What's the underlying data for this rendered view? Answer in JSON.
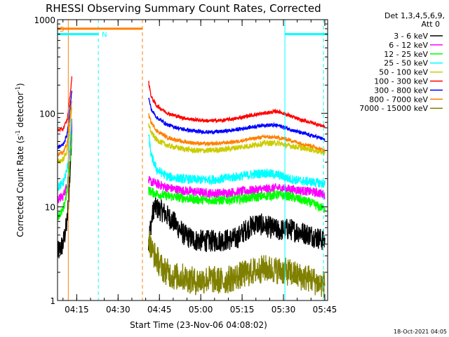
{
  "chart_data": {
    "type": "line",
    "title": "RHESSI Observing Summary Count Rates, Corrected",
    "xlabel": "Start Time (23-Nov-06 04:08:02)",
    "ylabel_main": "Corrected Count Rate (s",
    "ylabel_sup1": "-1",
    "ylabel_mid": " detector",
    "ylabel_sup2": "-1",
    "ylabel_end": ")",
    "x_unit": "minutes after 04:08:02",
    "xlim": [
      0,
      98
    ],
    "ylim": [
      1,
      1000
    ],
    "yscale": "log",
    "x_ticks": [
      {
        "label": "04:15",
        "x": 6.97
      },
      {
        "label": "04:30",
        "x": 21.97
      },
      {
        "label": "04:45",
        "x": 36.97
      },
      {
        "label": "05:00",
        "x": 51.97
      },
      {
        "label": "05:15",
        "x": 66.97
      },
      {
        "label": "05:30",
        "x": 81.97
      },
      {
        "label": "05:45",
        "x": 96.97
      }
    ],
    "y_ticks": [
      {
        "label": "1",
        "y": 1
      },
      {
        "label": "10",
        "y": 10
      },
      {
        "label": "100",
        "y": 100
      },
      {
        "label": "1000",
        "y": 1000
      }
    ],
    "legend_header": [
      "Det 1,3,4,5,6,9,",
      "Att 0"
    ],
    "legend_position": "right",
    "series": [
      {
        "name": "3 - 6 keV",
        "color": "#000000",
        "x": [
          0,
          2,
          3.5,
          4.5,
          5.2,
          33,
          35,
          38,
          42,
          46,
          50,
          55,
          60,
          65,
          68,
          72,
          76,
          80,
          84,
          88,
          92,
          95,
          97
        ],
        "y": [
          3.2,
          4,
          7,
          22,
          70,
          4.5,
          10,
          9,
          7,
          5,
          4.4,
          4.3,
          4.4,
          4.6,
          5.6,
          6.7,
          6.2,
          5.6,
          5.8,
          5.4,
          5,
          4.6,
          4.3
        ]
      },
      {
        "name": "6 - 12 keV",
        "color": "#ff00ff",
        "x": [
          0,
          2,
          3.5,
          4.5,
          5.2,
          33,
          35,
          40,
          45,
          50,
          55,
          60,
          65,
          70,
          75,
          80,
          84,
          88,
          92,
          95,
          97
        ],
        "y": [
          12,
          13,
          17,
          35,
          80,
          19,
          18,
          16,
          15,
          14.5,
          14,
          14,
          14.5,
          15,
          15.5,
          16,
          15.5,
          15,
          14.5,
          14,
          13.5
        ]
      },
      {
        "name": "12 - 25 keV",
        "color": "#00ff00",
        "x": [
          0,
          2,
          3.5,
          4.5,
          5.2,
          33,
          35,
          40,
          45,
          50,
          55,
          60,
          65,
          70,
          75,
          80,
          84,
          88,
          92,
          95,
          97
        ],
        "y": [
          8,
          9,
          15,
          30,
          60,
          15,
          14,
          13,
          12.5,
          12,
          11.8,
          11.8,
          12,
          12.5,
          13,
          13.5,
          13,
          12,
          11,
          10,
          9.5
        ]
      },
      {
        "name": "25 - 50 keV",
        "color": "#00ffff",
        "x": [
          0,
          2,
          3.5,
          4.5,
          5.2,
          33,
          34,
          36,
          40,
          45,
          50,
          55,
          60,
          65,
          70,
          75,
          80,
          84,
          88,
          92,
          95,
          97
        ],
        "y": [
          16,
          18,
          25,
          50,
          90,
          60,
          35,
          25,
          21,
          20,
          19.5,
          19.5,
          20,
          21,
          22,
          23,
          22,
          20,
          19,
          18.5,
          18,
          17.5
        ]
      },
      {
        "name": "50 - 100 keV",
        "color": "#cccc00",
        "x": [
          0,
          2,
          3.5,
          4.5,
          5.2,
          33,
          34,
          36,
          40,
          45,
          50,
          55,
          60,
          65,
          70,
          75,
          80,
          84,
          88,
          92,
          95,
          97
        ],
        "y": [
          30,
          32,
          40,
          70,
          110,
          78,
          62,
          52,
          45,
          42,
          40,
          40,
          41,
          43,
          45,
          48,
          48,
          45,
          43,
          41,
          39,
          38
        ]
      },
      {
        "name": "100 - 300 keV",
        "color": "#ff0000",
        "x": [
          0,
          2,
          3.5,
          4.5,
          5.2,
          33,
          34,
          36,
          40,
          45,
          50,
          55,
          60,
          65,
          70,
          75,
          80,
          84,
          88,
          92,
          95,
          97
        ],
        "y": [
          66,
          68,
          85,
          150,
          240,
          220,
          150,
          120,
          100,
          90,
          85,
          83,
          84,
          88,
          95,
          100,
          105,
          95,
          85,
          80,
          75,
          72
        ]
      },
      {
        "name": "300 - 800 keV",
        "color": "#0000ff",
        "x": [
          0,
          2,
          3.5,
          4.5,
          5.2,
          33,
          34,
          36,
          40,
          45,
          50,
          55,
          60,
          65,
          70,
          75,
          80,
          84,
          88,
          92,
          95,
          97
        ],
        "y": [
          43,
          46,
          60,
          110,
          180,
          150,
          110,
          90,
          75,
          68,
          64,
          63,
          64,
          67,
          71,
          75,
          74,
          68,
          62,
          58,
          55,
          52
        ]
      },
      {
        "name": "800 - 7000 keV",
        "color": "#ff8000",
        "x": [
          0,
          2,
          3.5,
          4.5,
          5.2,
          33,
          34,
          36,
          40,
          45,
          50,
          55,
          60,
          65,
          70,
          75,
          80,
          84,
          88,
          92,
          95,
          97
        ],
        "y": [
          36,
          38,
          48,
          85,
          140,
          96,
          80,
          65,
          55,
          50,
          48,
          47,
          48,
          50,
          53,
          56,
          55,
          52,
          48,
          45,
          42,
          40
        ]
      },
      {
        "name": "7000 - 15000 keV",
        "color": "#808000",
        "x": [
          33,
          34,
          36,
          38,
          40,
          42,
          45,
          50,
          55,
          60,
          65,
          70,
          75,
          80,
          84,
          88,
          92,
          95,
          97
        ],
        "y": [
          5,
          3.5,
          2.8,
          2.2,
          2.0,
          1.8,
          1.8,
          1.6,
          1.7,
          1.6,
          1.8,
          2.0,
          2.2,
          2.1,
          2.0,
          1.8,
          1.7,
          1.5,
          1.5
        ]
      }
    ],
    "flags": [
      {
        "label": "S",
        "color": "#ff8000",
        "x": [
          0,
          30.8
        ],
        "y": 800
      },
      {
        "label": "N",
        "color": "#00ffff",
        "x": [
          0,
          14.8
        ],
        "y": 700
      },
      {
        "label": "",
        "color": "#00ffff",
        "x": [
          82.5,
          98
        ],
        "y": 700
      }
    ],
    "vlines": [
      {
        "x": 3.9,
        "color": "#ff8000",
        "style": "solid"
      },
      {
        "x": 14.8,
        "color": "#00ffff",
        "style": "dashed"
      },
      {
        "x": 30.8,
        "color": "#ff8000",
        "style": "dashed"
      },
      {
        "x": 82.5,
        "color": "#00ffff",
        "style": "solid"
      },
      {
        "x": 96.5,
        "color": "#00ffff",
        "style": "dashed"
      }
    ],
    "footer_date": "18-Oct-2021 04:05"
  }
}
